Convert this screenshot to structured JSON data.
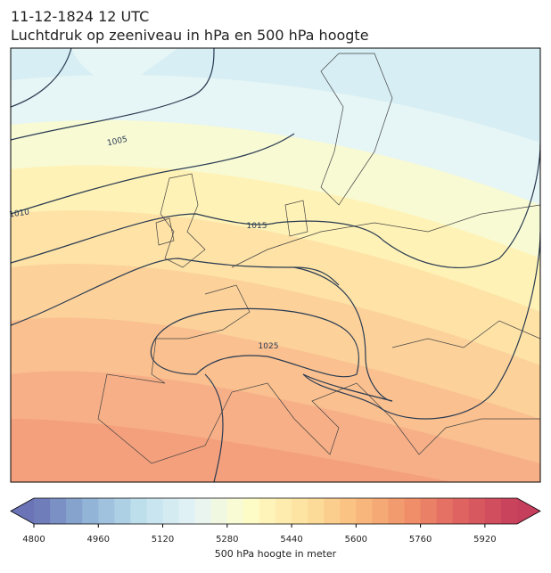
{
  "header": {
    "title_line1": "11-12-1824 12 UTC",
    "title_line2": "Luchtdruk op zeeniveau in hPa en 500 hPa hoogte"
  },
  "map": {
    "contours": [
      {
        "label": 1005
      },
      {
        "label": 1010
      },
      {
        "label": 1015
      },
      {
        "label": 1025
      }
    ]
  },
  "colorbar": {
    "label": "500 hPa hoogte in meter",
    "range": [
      4800,
      6000
    ],
    "step": 40,
    "ticks": [
      4800,
      4960,
      5120,
      5280,
      5440,
      5600,
      5760,
      5920
    ],
    "colormap": [
      "#6b74b6",
      "#8fb2d6",
      "#bfe0ec",
      "#e6f4f6",
      "#fefdc8",
      "#fde3a0",
      "#f9bd7f",
      "#f09068",
      "#de6160",
      "#c53e5c"
    ]
  }
}
